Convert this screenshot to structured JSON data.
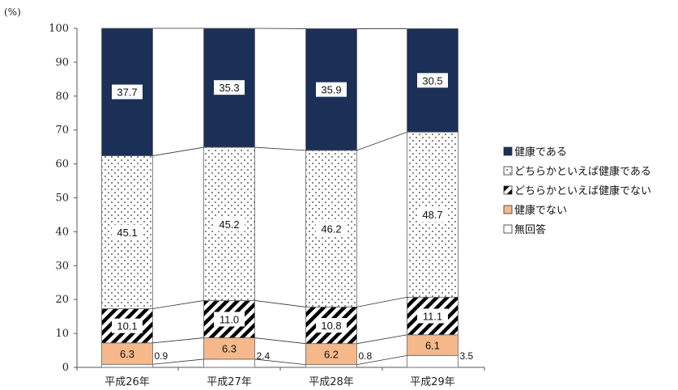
{
  "chart_data": {
    "type": "bar",
    "stacked": true,
    "unit_label": "(%)",
    "categories": [
      "平成26年",
      "平成27年",
      "平成28年",
      "平成29年"
    ],
    "ylim": [
      0,
      100
    ],
    "yticks": [
      0,
      10,
      20,
      30,
      40,
      50,
      60,
      70,
      80,
      90,
      100
    ],
    "legend_position": "right",
    "series": [
      {
        "name": "無回答",
        "values": [
          0.9,
          2.4,
          0.8,
          3.5
        ],
        "pattern": "blank",
        "color": "#ffffff"
      },
      {
        "name": "健康でない",
        "values": [
          6.3,
          6.3,
          6.2,
          6.1
        ],
        "pattern": "solid",
        "color": "#f5b88a"
      },
      {
        "name": "どちらかといえば健康でない",
        "values": [
          10.1,
          11.0,
          10.8,
          11.1
        ],
        "pattern": "diagonal-stripes",
        "color": "#000000"
      },
      {
        "name": "どちらかといえば健康である",
        "values": [
          45.1,
          45.2,
          46.2,
          48.7
        ],
        "pattern": "dots",
        "color": "#333333"
      },
      {
        "name": "健康である",
        "values": [
          37.7,
          35.3,
          35.9,
          30.5
        ],
        "pattern": "solid",
        "color": "#1b2f57"
      }
    ],
    "legend_order": [
      "健康である",
      "どちらかといえば健康である",
      "どちらかといえば健康でない",
      "健康でない",
      "無回答"
    ]
  }
}
